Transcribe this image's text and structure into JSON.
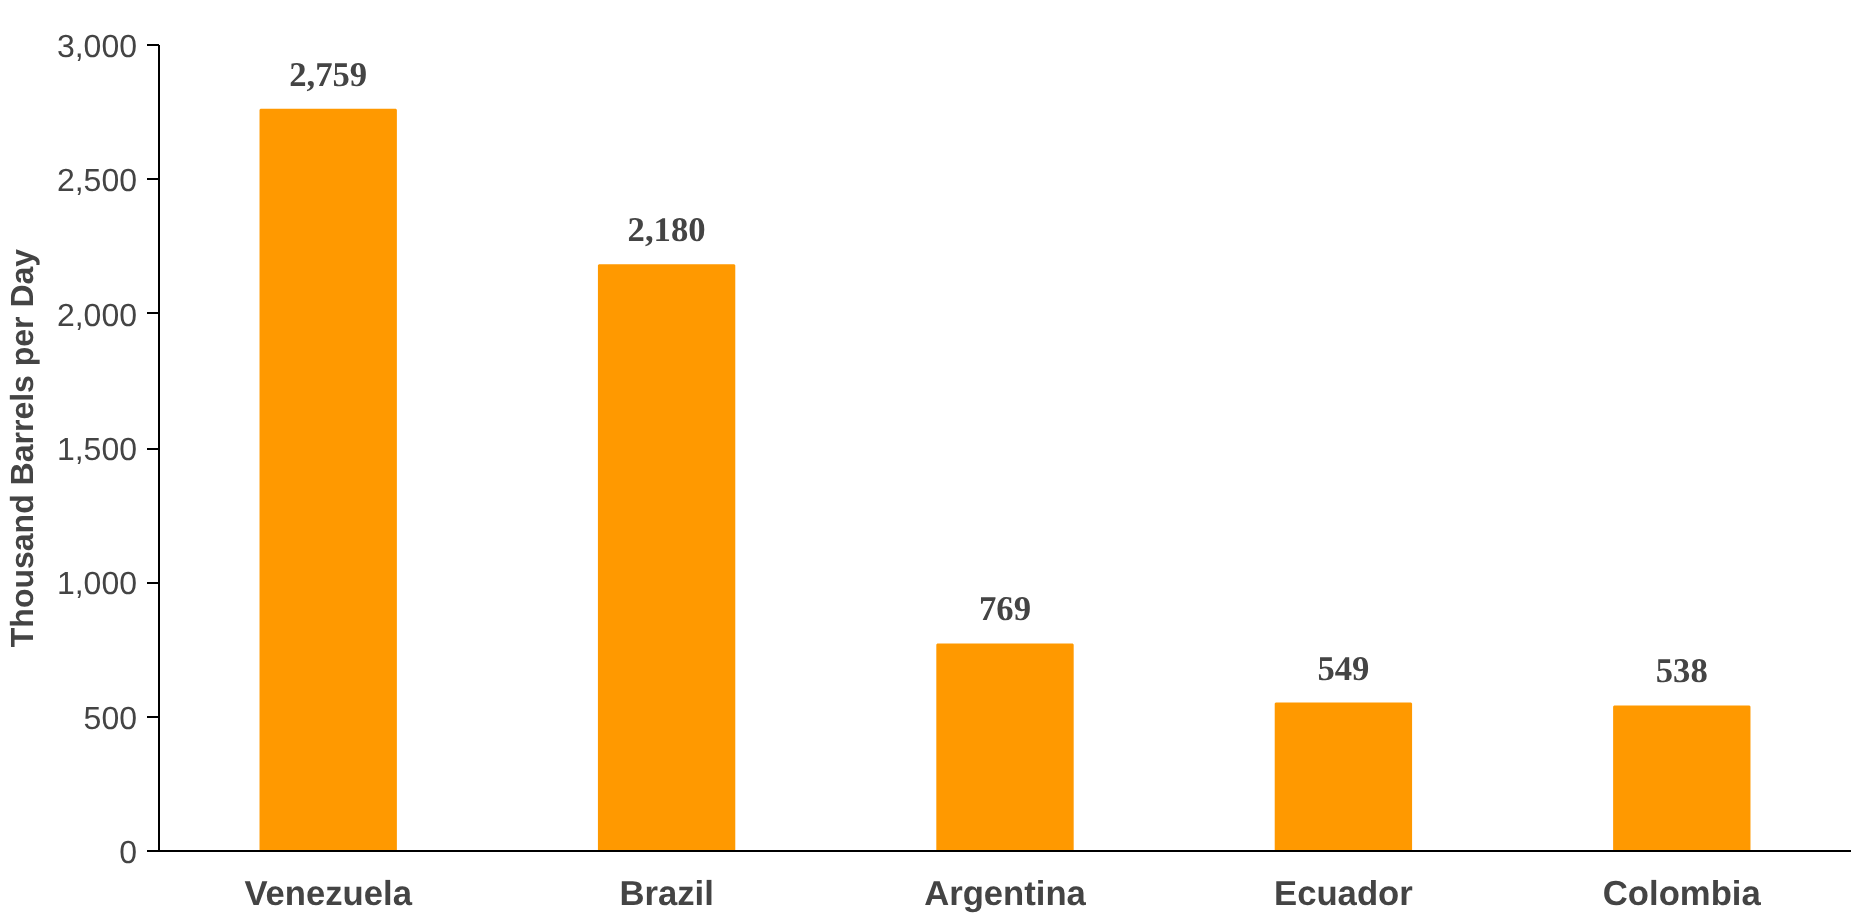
{
  "chart_data": {
    "type": "bar",
    "ylabel": "Thousand Barrels per Day",
    "categories": [
      "Venezuela",
      "Brazil",
      "Argentina",
      "Ecuador",
      "Colombia"
    ],
    "values": [
      2759,
      2180,
      769,
      549,
      538
    ],
    "value_labels": [
      "2,759",
      "2,180",
      "769",
      "549",
      "538"
    ],
    "color": "#ff9900",
    "ylim": [
      0,
      3000
    ],
    "yticks": [
      0,
      500,
      {
        "value": 1000,
        "label": "1,000"
      },
      {
        "value": 1500,
        "label": "1,500"
      },
      {
        "value": 2000,
        "label": "2,000"
      },
      {
        "value": 2500,
        "label": "2,500"
      },
      {
        "value": 3000,
        "label": "3,000"
      }
    ],
    "grid": false
  }
}
